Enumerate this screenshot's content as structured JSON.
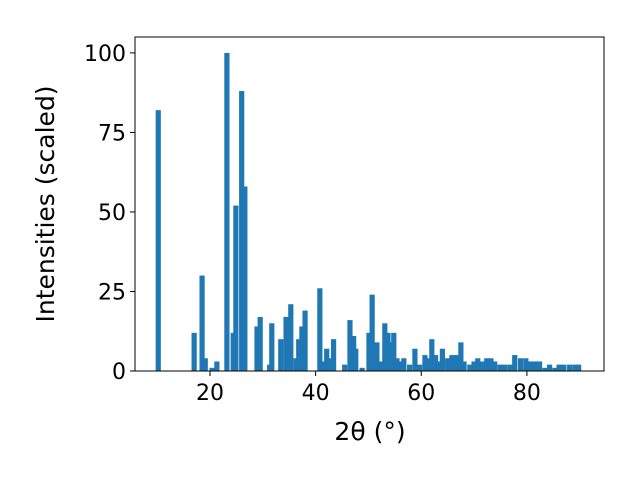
{
  "chart_data": {
    "type": "bar",
    "xlabel": "2θ (°)",
    "ylabel": "Intensities (scaled)",
    "x": [
      10.2,
      17.0,
      18.5,
      19.1,
      20.4,
      21.3,
      23.2,
      24.4,
      24.9,
      26.0,
      26.6,
      28.9,
      29.5,
      31.3,
      31.7,
      33.4,
      34.4,
      35.3,
      36.3,
      36.8,
      37.4,
      38.0,
      40.8,
      41.4,
      42.1,
      42.7,
      43.4,
      45.5,
      46.5,
      47.2,
      47.6,
      48.8,
      50.1,
      50.7,
      51.6,
      52.2,
      53.1,
      53.7,
      54.3,
      54.8,
      55.4,
      56.0,
      56.7,
      57.8,
      58.8,
      59.7,
      60.7,
      61.4,
      62.0,
      62.7,
      63.4,
      64.0,
      65.0,
      65.8,
      66.6,
      67.5,
      68.1,
      69.2,
      70.0,
      70.7,
      71.6,
      72.4,
      73.2,
      73.9,
      74.9,
      75.8,
      76.8,
      77.7,
      78.8,
      79.8,
      80.7,
      81.5,
      82.4,
      83.4,
      84.3,
      85.3,
      86.1,
      87.0,
      88.1,
      89.1,
      89.8
    ],
    "values": [
      82,
      12,
      30,
      4,
      1,
      3,
      100,
      12,
      52,
      88,
      58,
      14,
      17,
      2,
      15,
      10,
      17,
      21,
      4,
      10,
      14,
      19,
      26,
      3,
      7,
      4,
      10,
      2,
      16,
      11,
      7,
      1,
      12,
      24,
      9,
      3,
      15,
      12,
      9,
      12,
      4,
      3,
      4,
      2,
      7,
      2,
      5,
      4,
      10,
      5,
      3,
      7,
      4,
      5,
      5,
      9,
      3,
      2,
      3,
      4,
      3,
      4,
      4,
      3,
      2,
      2,
      2,
      5,
      4,
      4,
      3,
      3,
      3,
      1,
      2,
      1,
      2,
      2,
      2,
      2,
      2
    ],
    "color": "#1f77b4",
    "xlim": [
      5.8,
      94.6
    ],
    "ylim": [
      0,
      105
    ],
    "xticks": [
      20,
      40,
      60,
      80
    ],
    "yticks": [
      0,
      25,
      50,
      75,
      100
    ],
    "grid": false
  }
}
